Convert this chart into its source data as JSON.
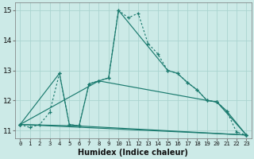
{
  "bg_color": "#cceae7",
  "grid_color": "#aad4d0",
  "line_color": "#1a7a6e",
  "xlabel": "Humidex (Indice chaleur)",
  "xlim": [
    -0.5,
    23.5
  ],
  "ylim": [
    10.75,
    15.25
  ],
  "yticks": [
    11,
    12,
    13,
    14,
    15
  ],
  "xticks": [
    0,
    1,
    2,
    3,
    4,
    5,
    6,
    7,
    8,
    9,
    10,
    11,
    12,
    13,
    14,
    15,
    16,
    17,
    18,
    19,
    20,
    21,
    22,
    23
  ],
  "main_curve": {
    "x": [
      0,
      1,
      2,
      3,
      4,
      5,
      6,
      7,
      8,
      9,
      10,
      11,
      12,
      13,
      14,
      15,
      16,
      17,
      18,
      19,
      20,
      21,
      22,
      23
    ],
    "y": [
      11.2,
      11.1,
      11.2,
      11.6,
      12.9,
      11.2,
      11.15,
      12.55,
      12.65,
      12.75,
      15.0,
      14.75,
      14.9,
      13.9,
      13.55,
      13.0,
      12.9,
      12.6,
      12.35,
      12.0,
      11.95,
      11.65,
      10.95,
      10.85
    ]
  },
  "fan_lines": [
    {
      "x": [
        0,
        23
      ],
      "y": [
        11.2,
        10.85
      ]
    },
    {
      "x": [
        0,
        4,
        5,
        6,
        23
      ],
      "y": [
        11.2,
        12.9,
        11.2,
        11.15,
        10.85
      ]
    },
    {
      "x": [
        0,
        6,
        7,
        8,
        19,
        20,
        21,
        23
      ],
      "y": [
        11.2,
        11.15,
        12.55,
        12.65,
        12.0,
        11.95,
        11.65,
        10.85
      ]
    },
    {
      "x": [
        0,
        8,
        9,
        10,
        15,
        16,
        17,
        18,
        19,
        20,
        23
      ],
      "y": [
        11.2,
        12.65,
        12.75,
        15.0,
        13.0,
        12.9,
        12.6,
        12.35,
        12.0,
        11.95,
        10.85
      ]
    }
  ]
}
